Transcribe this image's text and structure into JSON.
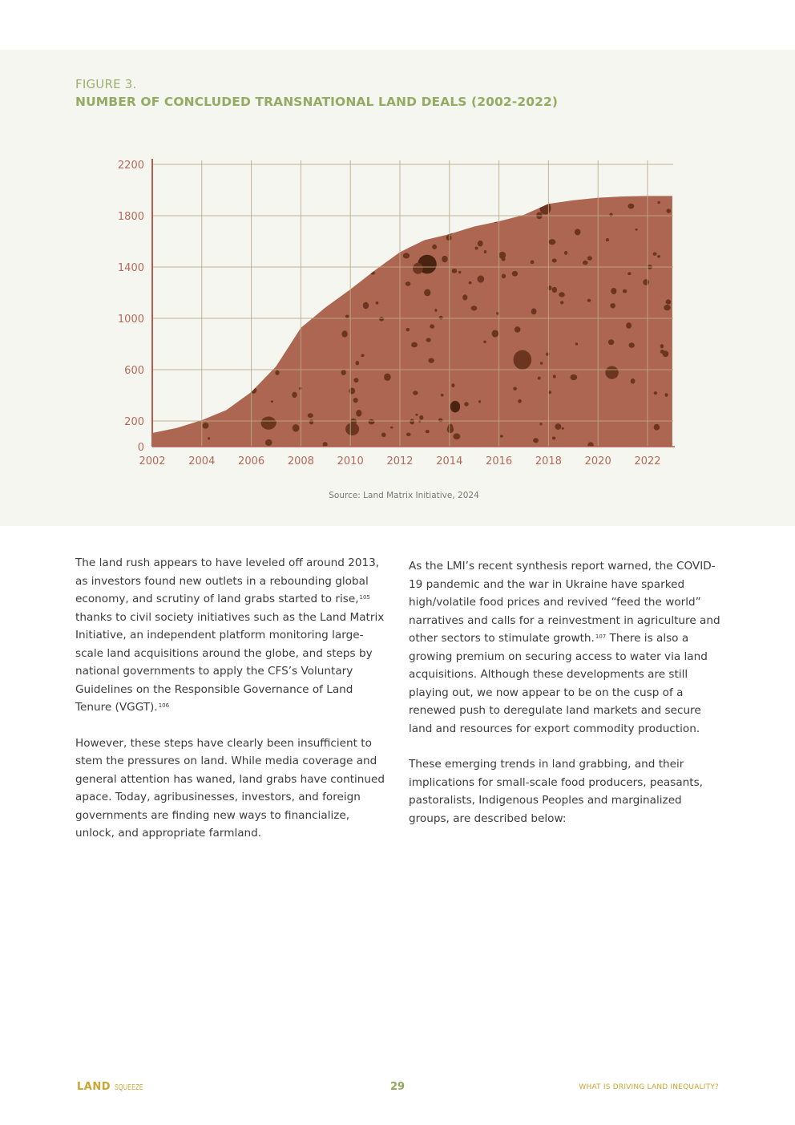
{
  "figure": {
    "label": "FIGURE 3.",
    "title": "NUMBER OF CONCLUDED TRANSNATIONAL LAND DEALS (2002-2022)",
    "source": "Source: Land Matrix Initiative, 2024"
  },
  "chart_data": {
    "type": "area",
    "title": "NUMBER OF CONCLUDED TRANSNATIONAL LAND DEALS (2002-2022)",
    "xlabel": "",
    "ylabel": "",
    "x": [
      2002,
      2003,
      2004,
      2005,
      2006,
      2007,
      2008,
      2009,
      2010,
      2011,
      2012,
      2013,
      2014,
      2015,
      2016,
      2017,
      2018,
      2019,
      2020,
      2021,
      2022,
      2023
    ],
    "values": [
      106,
      146,
      206,
      286,
      426,
      626,
      926,
      1086,
      1226,
      1376,
      1516,
      1610,
      1656,
      1716,
      1756,
      1806,
      1892,
      1920,
      1940,
      1950,
      1954,
      1954
    ],
    "xlim": [
      2002,
      2023
    ],
    "ylim": [
      0,
      2200
    ],
    "xticks": [
      "2002",
      "2004",
      "2006",
      "2008",
      "2010",
      "2012",
      "2014",
      "2016",
      "2018",
      "2020",
      "2022"
    ],
    "yticks": [
      "0",
      "200",
      "600",
      "1000",
      "1400",
      "1800",
      "2200"
    ],
    "grid": true,
    "legend": "none",
    "colors": {
      "fill": "#ad6651",
      "spots": "#6b3520",
      "grid": "#b8ab84",
      "axis": "#b25f4e",
      "tick_label": "#b5695a"
    }
  },
  "body": {
    "left": [
      {
        "text": "The land rush appears to have leveled off around 2013, as investors found new outlets in a rebounding global economy, and scrutiny of land grabs started to rise,",
        "note": "105",
        "after": " thanks to civil society initiatives such as the Land Matrix Initiative, an independent platform monitoring large-scale land acquisitions around the globe, and steps by national governments to apply the CFS’s Voluntary Guidelines on the Responsible Governance of Land Tenure (VGGT).",
        "note2": "106"
      },
      {
        "text": "However, these steps have clearly been insufficient to stem the pressures on land. While media coverage and general attention has waned, land grabs have continued apace. Today, agribusinesses, investors, and foreign governments are finding new ways to financialize, unlock, and appropriate farmland."
      }
    ],
    "right": [
      {
        "text": "As the LMI’s recent synthesis report warned, the COVID-19 pandemic and the war in Ukraine have sparked high/volatile food prices and revived “feed the world” narratives and calls for a reinvestment in agriculture and other sectors to stimulate growth.",
        "note": "107",
        "after": " There is also a growing premium on securing access to water via land acquisitions. Although these developments are still playing out, we now appear to be on the cusp of a renewed push to deregulate land markets and secure land and resources for export commodity production."
      },
      {
        "text": "These emerging trends in land grabbing, and their implications for small-scale food producers, peasants, pastoralists, Indigenous Peoples and marginalized groups, are described below:"
      }
    ]
  },
  "footer": {
    "logo_land": "LAND",
    "logo_squeeze": "SQUEEZE",
    "page_number": "29",
    "section": "WHAT IS DRIVING LAND INEQUALITY?"
  }
}
